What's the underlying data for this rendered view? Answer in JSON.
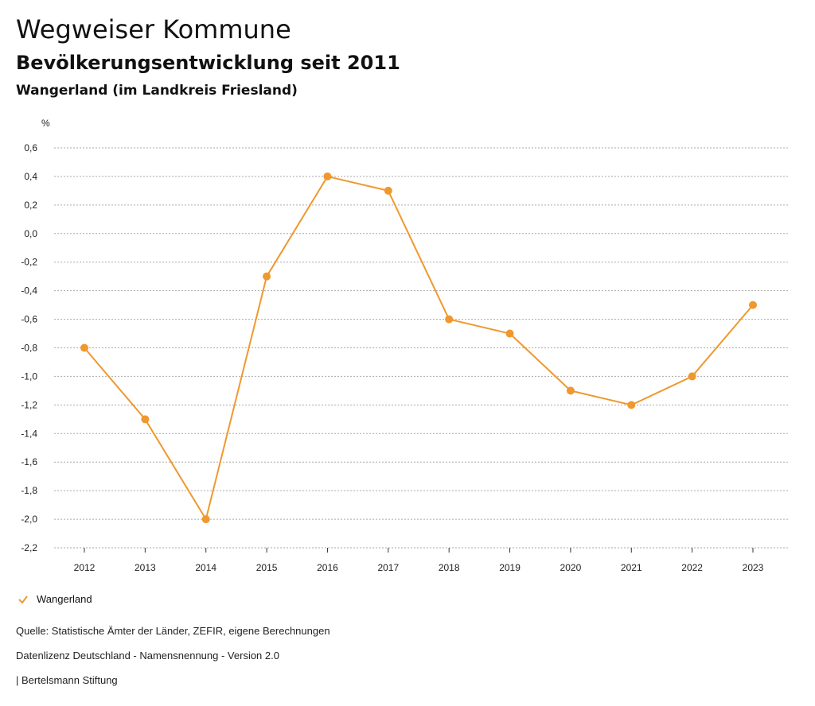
{
  "header": {
    "title": "Wegweiser Kommune",
    "subtitle": "Bevölkerungsentwicklung seit 2011",
    "region": "Wangerland (im Landkreis Friesland)"
  },
  "footer": {
    "source": "Quelle: Statistische Ämter der Länder, ZEFIR, eigene Berechnungen",
    "license": "Datenlizenz Deutschland - Namensnennung - Version 2.0",
    "publisher": "| Bertelsmann Stiftung"
  },
  "colors": {
    "series": "#f0982e",
    "grid": "#aaaaaa"
  },
  "chart_data": {
    "type": "line",
    "title": "Bevölkerungsentwicklung seit 2011",
    "ylabel": "%",
    "xlabel": "",
    "ylim": [
      -2.2,
      0.6
    ],
    "yticks": [
      0.6,
      0.4,
      0.2,
      0.0,
      -0.2,
      -0.4,
      -0.6,
      -0.8,
      -1.0,
      -1.2,
      -1.4,
      -1.6,
      -1.8,
      -2.0,
      -2.2
    ],
    "ytick_labels": [
      "0,6",
      "0,4",
      "0,2",
      "0,0",
      "-0,2",
      "-0,4",
      "-0,6",
      "-0,8",
      "-1,0",
      "-1,2",
      "-1,4",
      "-1,6",
      "-1,8",
      "-2,0",
      "-2,2"
    ],
    "categories": [
      "2012",
      "2013",
      "2014",
      "2015",
      "2016",
      "2017",
      "2018",
      "2019",
      "2020",
      "2021",
      "2022",
      "2023"
    ],
    "grid": true,
    "legend_position": "bottom-left",
    "series": [
      {
        "name": "Wangerland",
        "values": [
          -0.8,
          -1.3,
          -2.0,
          -0.3,
          0.4,
          0.3,
          -0.6,
          -0.7,
          -1.1,
          -1.2,
          -1.0,
          -0.5
        ]
      }
    ]
  }
}
